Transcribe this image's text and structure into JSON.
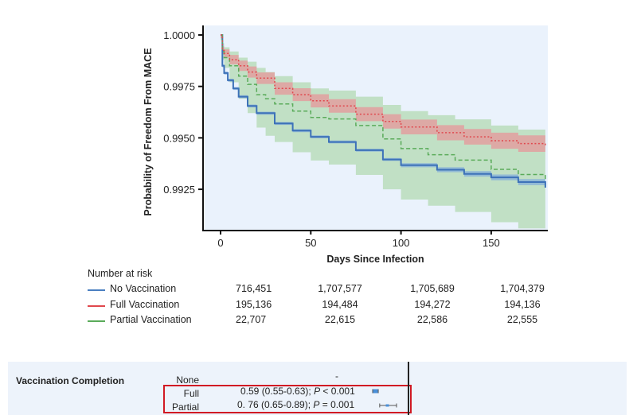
{
  "chart_data": {
    "type": "line",
    "title": "",
    "xlabel": "Days Since Infection",
    "ylabel": "Probability of Freedom From MACE",
    "xlim": [
      -8,
      181
    ],
    "ylim": [
      0.99195,
      1.00045
    ],
    "xticks": [
      0,
      50,
      100,
      150
    ],
    "xtick_labels": [
      "0",
      "50",
      "100",
      "150"
    ],
    "yticks": [
      1.0,
      0.9975,
      0.995,
      0.9925
    ],
    "ytick_labels": [
      "1.0000",
      "0.9975",
      "0.9950",
      "0.9925"
    ],
    "grid": false,
    "background": "#eaf2fc",
    "series": [
      {
        "name": "No Vaccination",
        "color": "#4a7fc1",
        "style": "solid",
        "x": [
          0,
          1,
          2,
          4,
          7,
          10,
          15,
          20,
          30,
          40,
          50,
          60,
          75,
          90,
          100,
          120,
          135,
          150,
          165,
          180
        ],
        "y": [
          1.0,
          0.9985,
          0.99815,
          0.9978,
          0.9974,
          0.997,
          0.99655,
          0.9962,
          0.9957,
          0.99535,
          0.99505,
          0.9948,
          0.9944,
          0.99395,
          0.99367,
          0.99345,
          0.99325,
          0.99308,
          0.99285,
          0.99258
        ],
        "ci_lower": [
          0.99995,
          0.99843,
          0.99808,
          0.99773,
          0.99733,
          0.99693,
          0.99648,
          0.99613,
          0.99563,
          0.99528,
          0.99498,
          0.99473,
          0.99433,
          0.99388,
          0.99357,
          0.99333,
          0.99312,
          0.99294,
          0.9927,
          0.99243
        ],
        "ci_upper": [
          1.0,
          0.99857,
          0.99822,
          0.99787,
          0.99747,
          0.99707,
          0.99662,
          0.99627,
          0.99577,
          0.99542,
          0.99512,
          0.99487,
          0.99447,
          0.99402,
          0.99377,
          0.99357,
          0.99338,
          0.99322,
          0.993,
          0.99273
        ],
        "ci_color": "#7aa6dd"
      },
      {
        "name": "Full Vaccination",
        "color": "#e0484d",
        "style": "dotted",
        "x": [
          0,
          1,
          2,
          5,
          10,
          15,
          20,
          30,
          40,
          50,
          60,
          75,
          90,
          100,
          120,
          135,
          150,
          165,
          180
        ],
        "y": [
          1.0,
          0.99925,
          0.9991,
          0.9988,
          0.9985,
          0.9982,
          0.9979,
          0.9974,
          0.9971,
          0.9968,
          0.99655,
          0.99615,
          0.9958,
          0.99553,
          0.99525,
          0.99505,
          0.99486,
          0.99472,
          0.99459
        ],
        "ci_lower": [
          0.99985,
          0.99905,
          0.9989,
          0.99857,
          0.99825,
          0.99793,
          0.99762,
          0.9971,
          0.99679,
          0.99648,
          0.99622,
          0.99581,
          0.99545,
          0.99517,
          0.99488,
          0.99467,
          0.99447,
          0.99432,
          0.99418
        ],
        "ci_upper": [
          1.0,
          0.99945,
          0.9993,
          0.99903,
          0.99875,
          0.99847,
          0.99818,
          0.9977,
          0.99741,
          0.99712,
          0.99688,
          0.99649,
          0.99615,
          0.99589,
          0.99562,
          0.99543,
          0.99525,
          0.99512,
          0.995
        ],
        "ci_color": "#ec8c93"
      },
      {
        "name": "Partial Vaccination",
        "color": "#5aab5a",
        "style": "dashed",
        "x": [
          0,
          1,
          2,
          5,
          10,
          15,
          20,
          25,
          30,
          40,
          50,
          60,
          75,
          90,
          100,
          115,
          130,
          150,
          165,
          180
        ],
        "y": [
          1.0,
          0.9992,
          0.9989,
          0.9985,
          0.998,
          0.9976,
          0.9971,
          0.9969,
          0.99665,
          0.9963,
          0.99599,
          0.99592,
          0.9956,
          0.99495,
          0.99448,
          0.99418,
          0.99392,
          0.99347,
          0.99322,
          0.99293
        ],
        "ci_lower": [
          0.99975,
          0.9988,
          0.9984,
          0.9977,
          0.9969,
          0.9962,
          0.9955,
          0.9951,
          0.9948,
          0.9943,
          0.9939,
          0.9937,
          0.9932,
          0.9925,
          0.992,
          0.9917,
          0.9914,
          0.9909,
          0.9906,
          0.9903
        ],
        "ci_upper": [
          1.0,
          0.9996,
          0.9994,
          0.9992,
          0.9989,
          0.9987,
          0.9984,
          0.9982,
          0.998,
          0.9977,
          0.9974,
          0.9973,
          0.997,
          0.9966,
          0.9963,
          0.9961,
          0.9959,
          0.9956,
          0.9954,
          0.9952
        ],
        "ci_color": "#a5d4a0"
      }
    ],
    "number_at_risk": {
      "title": "Number at risk",
      "timepoints": [
        0,
        50,
        100,
        150
      ],
      "rows": [
        {
          "label": "No Vaccination",
          "color": "#4a7fc1",
          "values": [
            "716,451",
            "1,707,577",
            "1,705,689",
            "1,704,379"
          ]
        },
        {
          "label": "Full Vaccination",
          "color": "#e0484d",
          "values": [
            "195,136",
            "194,484",
            "194,272",
            "194,136"
          ]
        },
        {
          "label": "Partial Vaccination",
          "color": "#5aab5a",
          "values": [
            "22,707",
            "22,615",
            "22,586",
            "22,555"
          ]
        }
      ]
    },
    "forest_panel": {
      "row_title": "Vaccination Completion",
      "groups": [
        {
          "label": "None",
          "estimate_text": "-",
          "hr": null,
          "ci": null
        },
        {
          "label": "Full",
          "estimate_text_pre": "0.59 (0.55-0.63); ",
          "p_label": "P",
          "p_text": " < 0.001",
          "hr": 0.59,
          "ci": [
            0.55,
            0.63
          ]
        },
        {
          "label": "Partial",
          "estimate_text_pre": "0. 76 (0.65-0.89); ",
          "p_label": "P",
          "p_text": " = 0.001",
          "hr": 0.76,
          "ci": [
            0.65,
            0.89
          ]
        }
      ],
      "marker_color": "#4a90d9",
      "highlight_color": "#d11a24"
    }
  }
}
